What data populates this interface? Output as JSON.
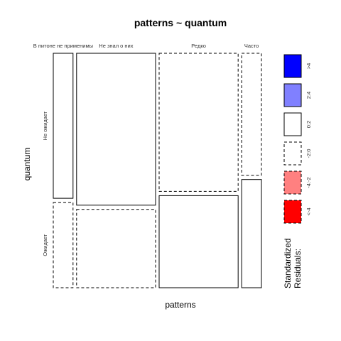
{
  "chart_data": {
    "type": "mosaic",
    "title": "patterns ~ quantum",
    "xlabel": "patterns",
    "ylabel": "quantum",
    "columns": [
      {
        "label": "В питоне не применимы",
        "share": 0.09
      },
      {
        "label": "Не знал о них",
        "share": 0.36
      },
      {
        "label": "Редко",
        "share": 0.36
      },
      {
        "label": "Часто",
        "share": 0.09
      }
    ],
    "rows": [
      "Не ожидает",
      "Ожидает"
    ],
    "cells": [
      {
        "column": "В питоне не применимы",
        "row": "Не ожидает",
        "proportion": 0.63,
        "residual_class": "0:2"
      },
      {
        "column": "В питоне не применимы",
        "row": "Ожидает",
        "proportion": 0.37,
        "residual_class": "-2:0"
      },
      {
        "column": "Не знал о них",
        "row": "Не ожидает",
        "proportion": 0.66,
        "residual_class": "0:2"
      },
      {
        "column": "Не знал о них",
        "row": "Ожидает",
        "proportion": 0.34,
        "residual_class": "-2:0"
      },
      {
        "column": "Редко",
        "row": "Не ожидает",
        "proportion": 0.6,
        "residual_class": "-2:0"
      },
      {
        "column": "Редко",
        "row": "Ожидает",
        "proportion": 0.4,
        "residual_class": "0:2"
      },
      {
        "column": "Часто",
        "row": "Не ожидает",
        "proportion": 0.53,
        "residual_class": "-2:0"
      },
      {
        "column": "Часто",
        "row": "Ожидает",
        "proportion": 0.47,
        "residual_class": "0:2"
      }
    ],
    "legend": {
      "title_line1": "Standardized",
      "title_line2": "Residuals:",
      "entries": [
        {
          "label": ">4",
          "fill": "#0000ff",
          "dashed": false
        },
        {
          "label": "2:4",
          "fill": "#8080ff",
          "dashed": false
        },
        {
          "label": "0:2",
          "fill": "#ffffff",
          "dashed": false
        },
        {
          "label": "-2:0",
          "fill": "#ffffff",
          "dashed": true
        },
        {
          "label": "-4:-2",
          "fill": "#ff8080",
          "dashed": true
        },
        {
          "label": "<-4",
          "fill": "#ff0000",
          "dashed": true
        }
      ]
    }
  }
}
